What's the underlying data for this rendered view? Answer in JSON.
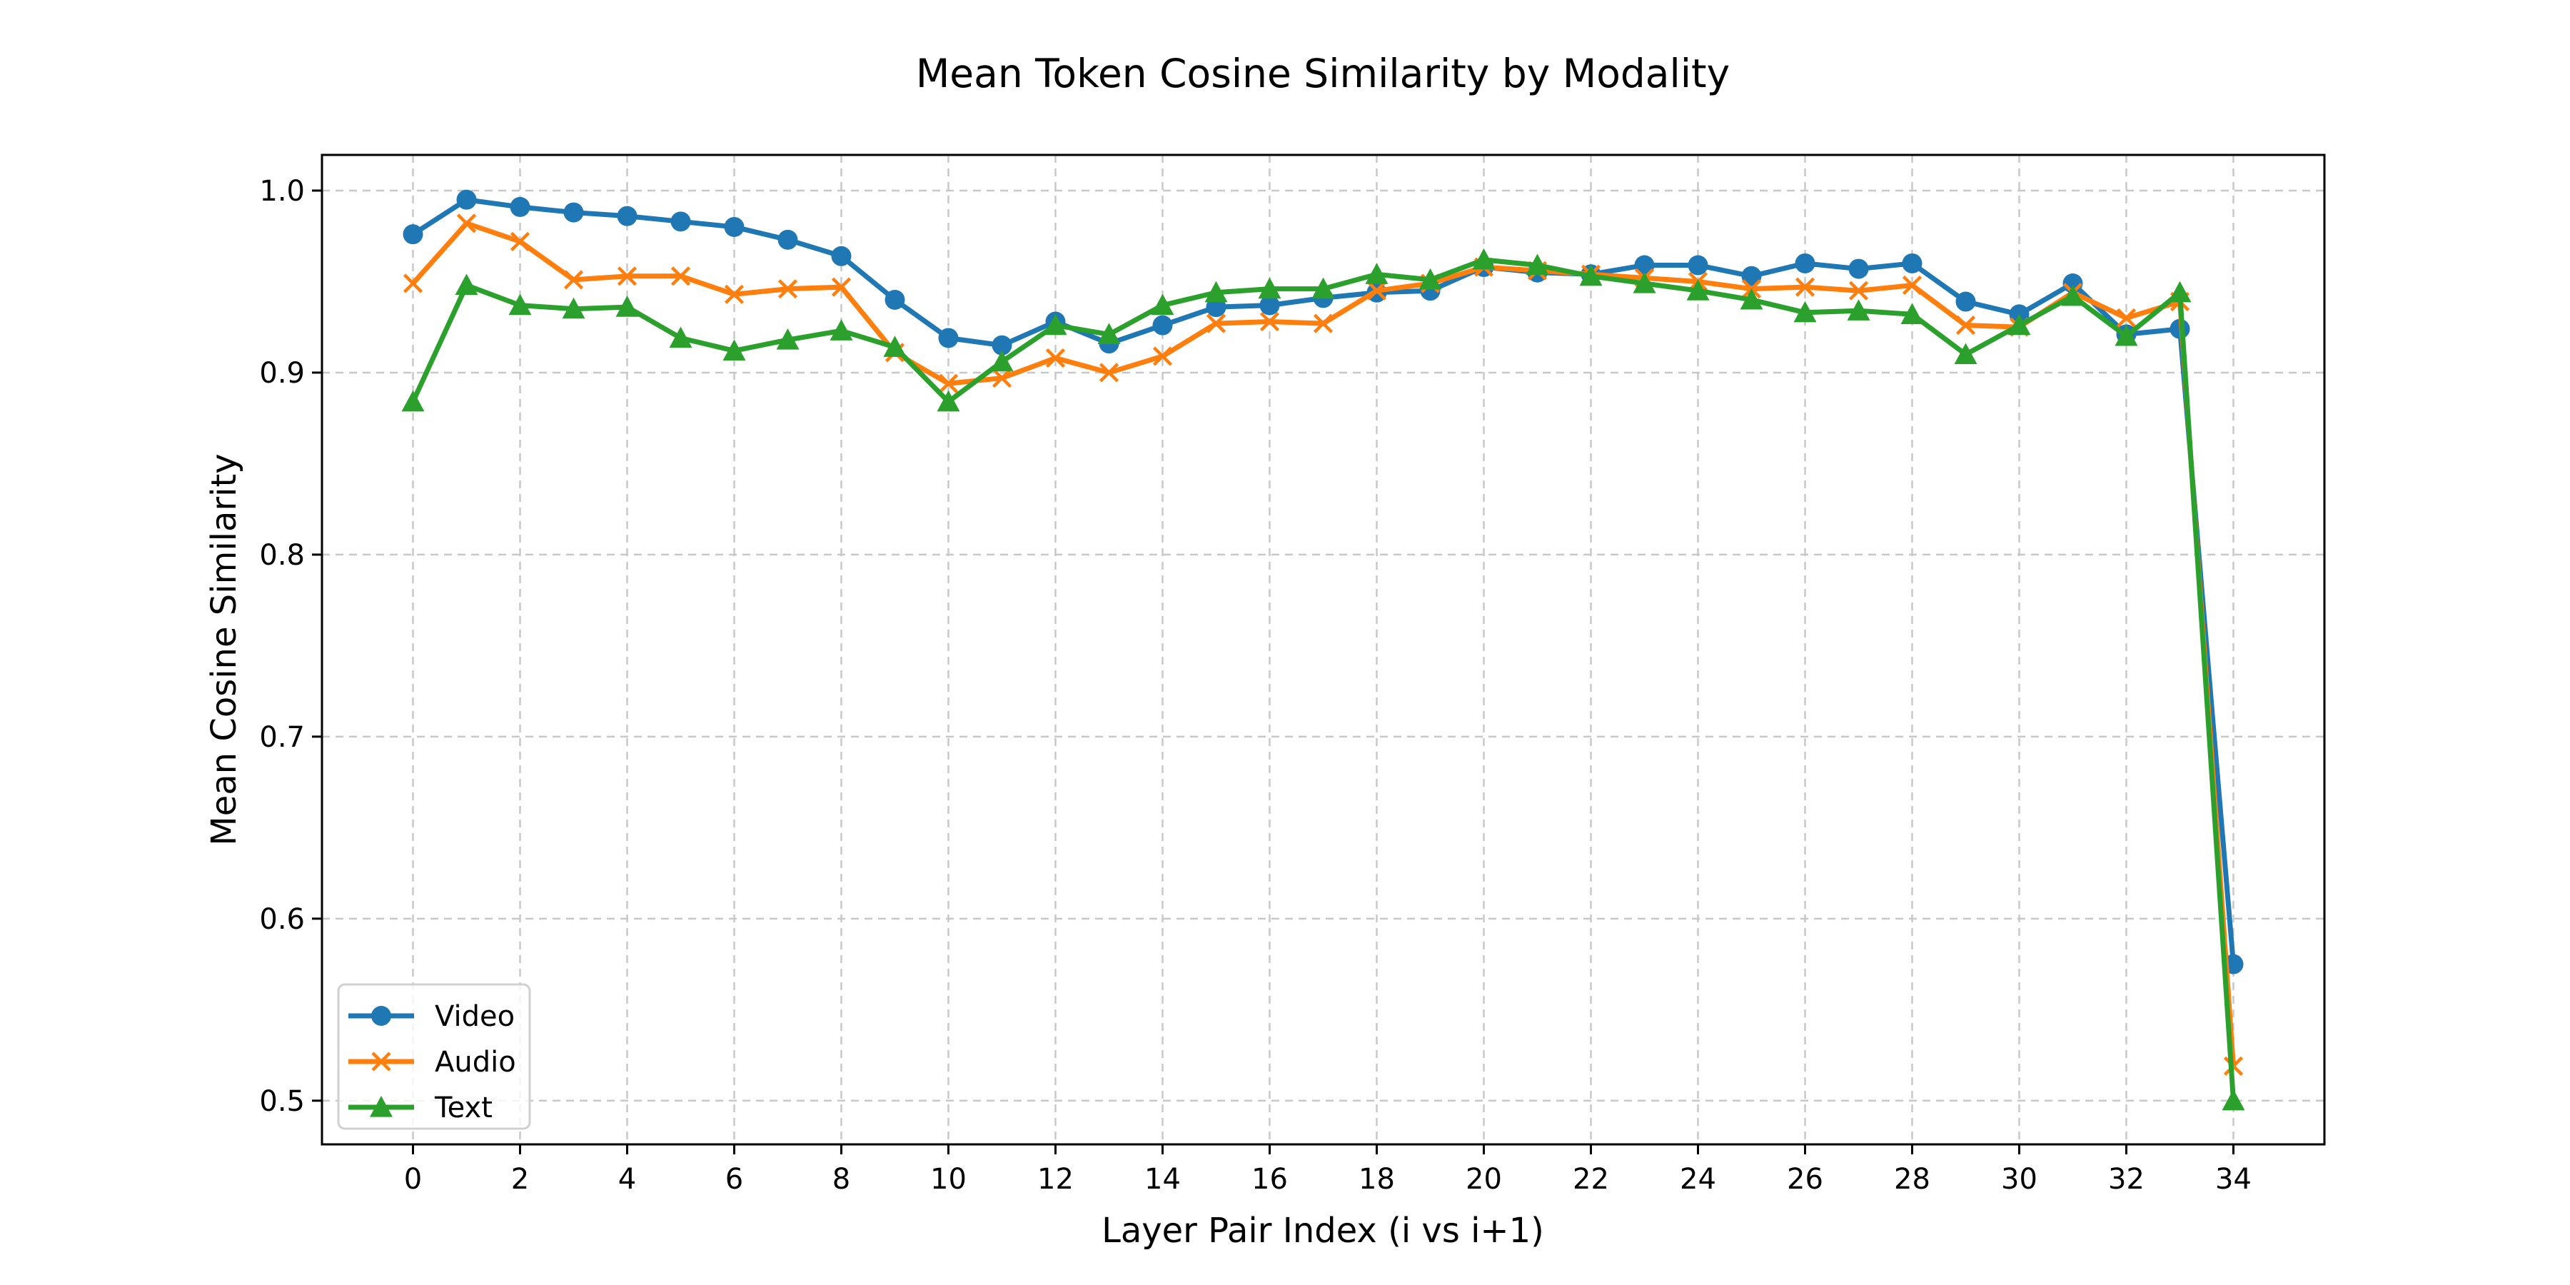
{
  "chart_data": {
    "type": "line",
    "title": "Mean Token Cosine Similarity by Modality",
    "xlabel": "Layer Pair Index (i vs i+1)",
    "ylabel": "Mean Cosine Similarity",
    "xlim": [
      -1.7,
      35.7
    ],
    "ylim": [
      0.476,
      1.0196
    ],
    "xticks": [
      0,
      2,
      4,
      6,
      8,
      10,
      12,
      14,
      16,
      18,
      20,
      22,
      24,
      26,
      28,
      30,
      32,
      34
    ],
    "yticks": [
      0.5,
      0.6,
      0.7,
      0.8,
      0.9,
      1.0
    ],
    "ytick_labels": [
      "0.5",
      "0.6",
      "0.7",
      "0.8",
      "0.9",
      "1.0"
    ],
    "grid": true,
    "grid_style": "dashed",
    "legend_position": "lower-left",
    "x": [
      0,
      1,
      2,
      3,
      4,
      5,
      6,
      7,
      8,
      9,
      10,
      11,
      12,
      13,
      14,
      15,
      16,
      17,
      18,
      19,
      20,
      21,
      22,
      23,
      24,
      25,
      26,
      27,
      28,
      29,
      30,
      31,
      32,
      33,
      34
    ],
    "series": [
      {
        "name": "Video",
        "color": "#1f77b4",
        "marker": "circle",
        "values": [
          0.976,
          0.995,
          0.991,
          0.988,
          0.986,
          0.983,
          0.98,
          0.973,
          0.964,
          0.94,
          0.919,
          0.915,
          0.928,
          0.916,
          0.926,
          0.936,
          0.937,
          0.941,
          0.944,
          0.945,
          0.958,
          0.955,
          0.954,
          0.959,
          0.959,
          0.953,
          0.96,
          0.957,
          0.96,
          0.939,
          0.932,
          0.949,
          0.921,
          0.924,
          0.575
        ]
      },
      {
        "name": "Audio",
        "color": "#ff7f0e",
        "marker": "x",
        "values": [
          0.949,
          0.982,
          0.972,
          0.951,
          0.953,
          0.953,
          0.943,
          0.946,
          0.947,
          0.911,
          0.894,
          0.897,
          0.908,
          0.9,
          0.909,
          0.927,
          0.928,
          0.927,
          0.945,
          0.949,
          0.958,
          0.956,
          0.954,
          0.952,
          0.95,
          0.946,
          0.947,
          0.945,
          0.948,
          0.926,
          0.925,
          0.944,
          0.93,
          0.939,
          0.519
        ]
      },
      {
        "name": "Text",
        "color": "#2ca02c",
        "marker": "triangle",
        "values": [
          0.884,
          0.948,
          0.937,
          0.935,
          0.936,
          0.919,
          0.912,
          0.918,
          0.923,
          0.914,
          0.884,
          0.906,
          0.926,
          0.921,
          0.937,
          0.944,
          0.946,
          0.946,
          0.954,
          0.951,
          0.962,
          0.959,
          0.953,
          0.949,
          0.945,
          0.94,
          0.933,
          0.934,
          0.932,
          0.91,
          0.926,
          0.942,
          0.92,
          0.944,
          0.5
        ]
      }
    ]
  }
}
